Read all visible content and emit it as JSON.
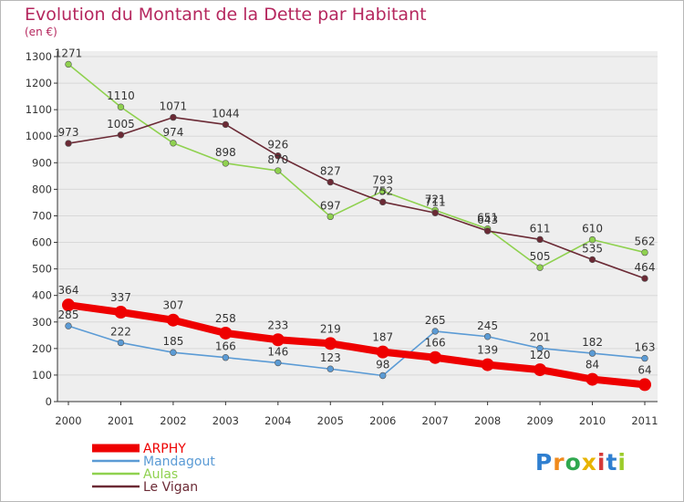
{
  "header": {
    "title": "Evolution du Montant de la Dette par Habitant",
    "subtitle": "(en €)"
  },
  "colors": {
    "title": "#b5275e",
    "axis": "#333333",
    "grid": "#d8d8d8",
    "plot_background": "#eeeeee"
  },
  "chart_data": {
    "type": "line",
    "title": "Evolution du Montant de la Dette par Habitant",
    "subtitle": "(en €)",
    "xlabel": "",
    "ylabel": "",
    "x": [
      "2000",
      "2001",
      "2002",
      "2003",
      "2004",
      "2005",
      "2006",
      "2007",
      "2008",
      "2009",
      "2010",
      "2011"
    ],
    "ylim": [
      0,
      1300
    ],
    "yticks": [
      "0",
      "100",
      "200",
      "300",
      "400",
      "500",
      "600",
      "700",
      "800",
      "900",
      "1000",
      "1100",
      "1200",
      "1300"
    ],
    "grid": true,
    "legend_position": "bottom-left",
    "series": [
      {
        "name": "ARPHY",
        "color": "#ee0000",
        "emphasis": true,
        "values": [
          364,
          337,
          307,
          258,
          233,
          219,
          187,
          166,
          139,
          120,
          84,
          64
        ],
        "labels": [
          "364",
          "337",
          "307",
          "258",
          "233",
          "219",
          "187",
          "166",
          "139",
          "120",
          "84",
          "64"
        ]
      },
      {
        "name": "Mandagout",
        "color": "#5b9bd5",
        "emphasis": false,
        "values": [
          285,
          222,
          185,
          166,
          146,
          123,
          98,
          265,
          245,
          201,
          182,
          163
        ],
        "labels": [
          "285",
          "222",
          "185",
          "166",
          "146",
          "123",
          "98",
          "265",
          "245",
          "201",
          "182",
          "163"
        ]
      },
      {
        "name": "Aulas",
        "color": "#8fd14f",
        "emphasis": false,
        "values": [
          1271,
          1110,
          974,
          898,
          870,
          697,
          793,
          721,
          651,
          505,
          610,
          562
        ],
        "labels": [
          "1271",
          "1110",
          "974",
          "898",
          "870",
          "697",
          "793",
          "721",
          "651",
          "505",
          "610",
          "562"
        ]
      },
      {
        "name": "Le Vigan",
        "color": "#6b2a35",
        "emphasis": false,
        "values": [
          973,
          1005,
          1071,
          1044,
          926,
          827,
          752,
          711,
          643,
          611,
          535,
          464
        ],
        "labels": [
          "973",
          "1005",
          "1071",
          "1044",
          "926",
          "827",
          "752",
          "711",
          "643",
          "611",
          "535",
          "464"
        ]
      }
    ]
  },
  "legend": {
    "items": [
      {
        "name": "ARPHY",
        "color": "#ee0000"
      },
      {
        "name": "Mandagout",
        "color": "#5b9bd5"
      },
      {
        "name": "Aulas",
        "color": "#8fd14f"
      },
      {
        "name": "Le Vigan",
        "color": "#6b2a35"
      }
    ]
  },
  "logo": {
    "letters": [
      "P",
      "r",
      "o",
      "x",
      "i",
      "t",
      "i"
    ],
    "colors": [
      "#2f7fd0",
      "#f08a1c",
      "#2fa84f",
      "#e8b400",
      "#d63a3a",
      "#2f7fd0",
      "#9ccc2b"
    ]
  }
}
